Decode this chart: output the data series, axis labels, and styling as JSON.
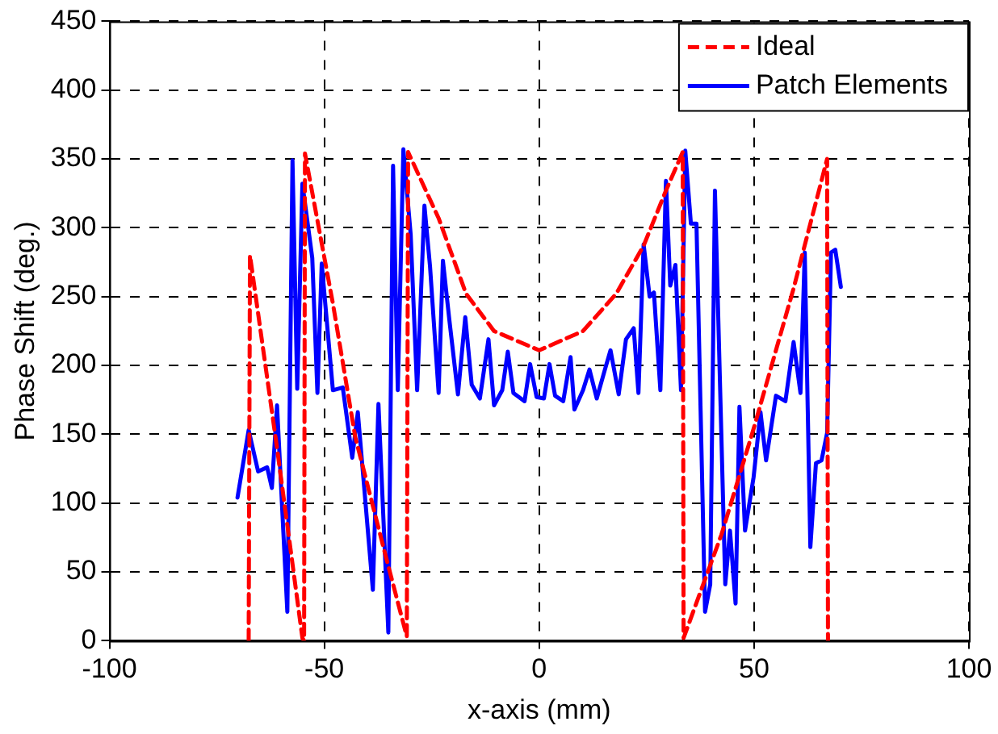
{
  "chart_data": {
    "type": "line",
    "xlabel": "x-axis (mm)",
    "ylabel": "Phase Shift (deg.)",
    "xlim": [
      -100,
      100
    ],
    "xticks": [
      -100,
      -50,
      0,
      50,
      100
    ],
    "ylim": [
      0,
      450
    ],
    "yticks": [
      0,
      50,
      100,
      150,
      200,
      250,
      300,
      350,
      400,
      450
    ],
    "grid": true,
    "legend": "top right",
    "marker": "none",
    "series": [
      {
        "name": "Ideal",
        "color": "#ff0000",
        "line_style": "dashed",
        "x": [
          -67.6,
          -67.3,
          -61,
          -55.1,
          -54.7,
          -54.5,
          -48,
          -42.8,
          -36,
          -30.8,
          -30.5,
          -23.4,
          -17,
          -10.5,
          0,
          10.2,
          17.9,
          24.3,
          29.5,
          33.4,
          33.6,
          42.4,
          49.9,
          59.2,
          67,
          67.2
        ],
        "values": [
          0,
          280,
          140,
          2,
          0,
          354,
          245,
          148,
          65,
          3,
          355,
          307,
          252,
          225,
          211,
          225,
          252,
          287,
          327,
          355,
          2,
          77,
          154,
          256,
          350,
          0
        ]
      },
      {
        "name": "Patch Elements",
        "color": "#0000ff",
        "line_style": "solid",
        "x": [
          -70.2,
          -67.6,
          -65.4,
          -63.3,
          -62.2,
          -61,
          -58.6,
          -57.4,
          -56.3,
          -55.1,
          -52.8,
          -51.6,
          -50.6,
          -48,
          -45.7,
          -43.5,
          -42.2,
          -38.7,
          -37.4,
          -35.1,
          -34,
          -32.9,
          -31.6,
          -29.9,
          -28.4,
          -26.7,
          -25.4,
          -23.4,
          -22.4,
          -20.9,
          -18.9,
          -17.2,
          -15.7,
          -13.8,
          -11.8,
          -10.5,
          -8.6,
          -7.3,
          -6,
          -3.4,
          -2.1,
          -0.6,
          1.1,
          2.4,
          3.7,
          5.6,
          7.3,
          8.2,
          10.2,
          11.7,
          13.4,
          15.3,
          16.6,
          18.5,
          20.2,
          22,
          23.1,
          24.3,
          25.7,
          26.7,
          28.2,
          29.5,
          30.5,
          31.7,
          33,
          34,
          35.3,
          36.6,
          38.6,
          39.8,
          40.9,
          43.3,
          44.4,
          45.7,
          46.6,
          47.9,
          49.9,
          51.5,
          52.8,
          55.1,
          57.3,
          59.2,
          60.8,
          61.8,
          63.1,
          64.4,
          65.7,
          67,
          67.9,
          68.9,
          70.2
        ],
        "values": [
          104,
          153,
          123,
          126,
          111,
          171,
          21,
          349,
          183,
          332,
          278,
          180,
          274,
          182,
          184,
          133,
          166,
          37,
          172,
          6,
          345,
          182,
          357,
          295,
          182,
          316,
          272,
          180,
          276,
          233,
          179,
          235,
          186,
          176,
          219,
          171,
          182,
          210,
          180,
          174,
          201,
          177,
          176,
          201,
          178,
          174,
          206,
          168,
          182,
          197,
          176,
          197,
          211,
          179,
          219,
          227,
          180,
          288,
          250,
          253,
          182,
          334,
          258,
          273,
          182,
          356,
          303,
          303,
          21,
          41,
          327,
          41,
          80,
          27,
          170,
          80,
          119,
          166,
          131,
          178,
          174,
          217,
          180,
          282,
          68,
          129,
          131,
          151,
          282,
          284,
          257
        ]
      }
    ]
  }
}
